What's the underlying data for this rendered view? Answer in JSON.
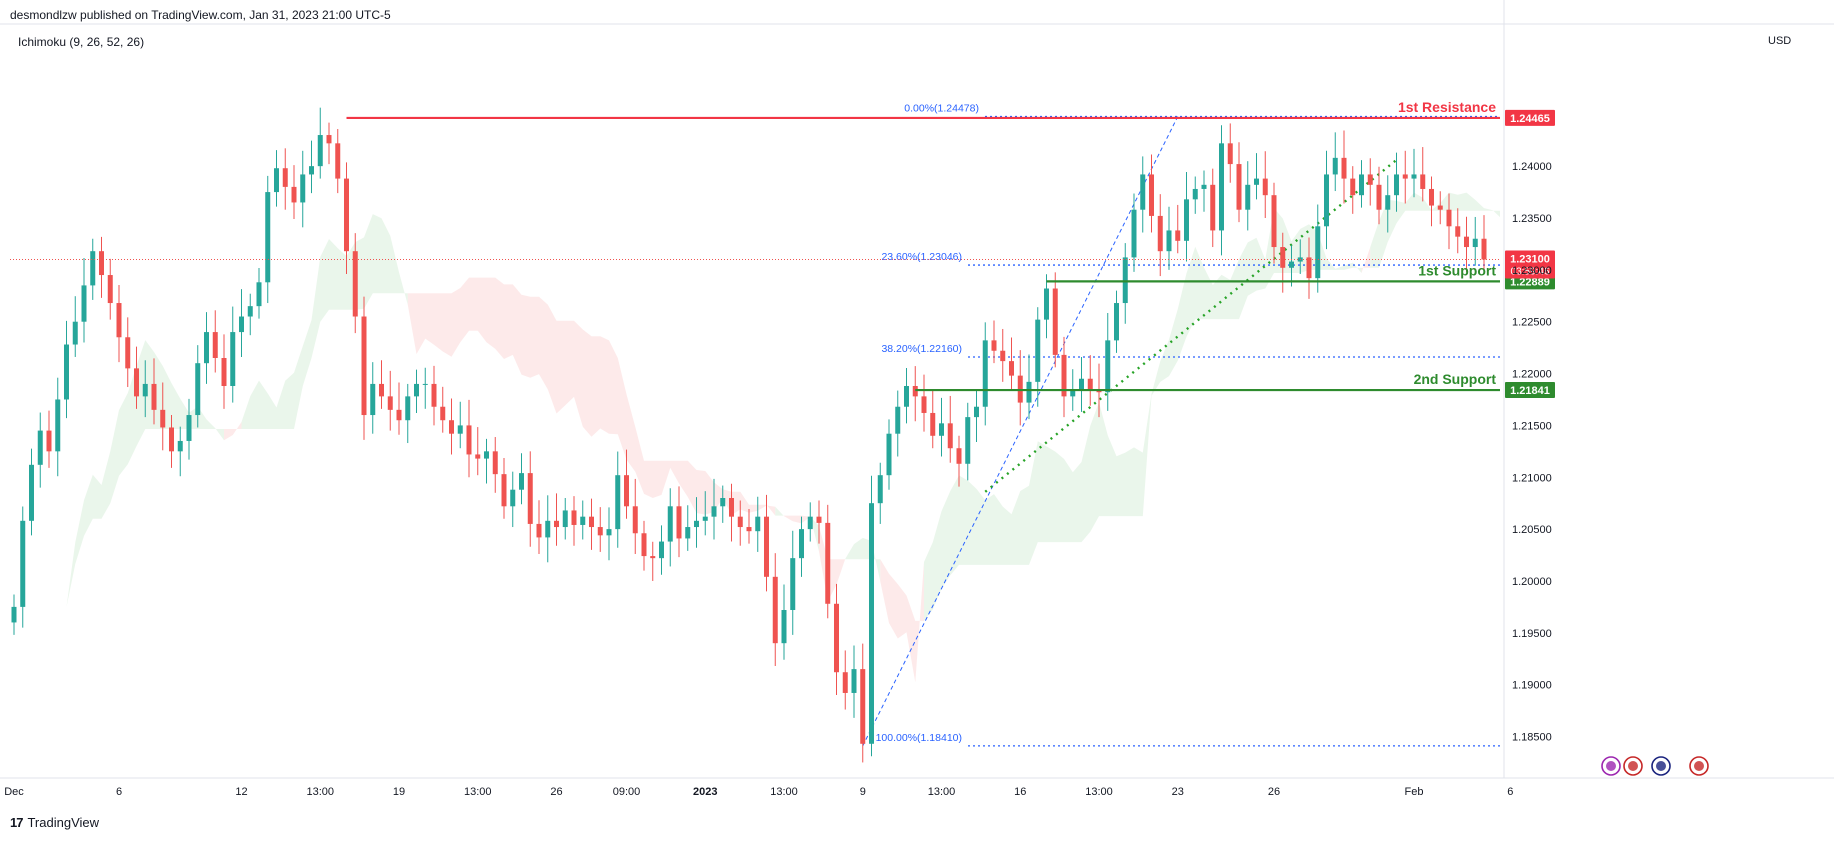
{
  "header": {
    "published": "desmondlzw published on TradingView.com, Jan 31, 2023 21:00 UTC-5",
    "indicator": "Ichimoku (9, 26, 52, 26)",
    "currency": "USD"
  },
  "footer": {
    "brand": "TradingView"
  },
  "colors": {
    "up": "#26a69a",
    "down": "#ef5350",
    "resistance": "#f23645",
    "support": "#2e8b2e",
    "fib": "#2962ff",
    "cloud_bull": "#e8f5e9",
    "cloud_bear": "#fde8e8"
  },
  "chart_data": {
    "type": "candlestick",
    "symbol_quote": "USD",
    "ylim": [
      1.181,
      1.2512
    ],
    "yticks": [
      "1.24000",
      "1.23500",
      "1.23000",
      "1.22500",
      "1.22000",
      "1.21500",
      "1.21000",
      "1.20500",
      "1.20000",
      "1.19500",
      "1.19000",
      "1.18500"
    ],
    "xticks": [
      {
        "label": "Dec",
        "x": 0
      },
      {
        "label": "6",
        "x": 12
      },
      {
        "label": "12",
        "x": 26
      },
      {
        "label": "13:00",
        "x": 35
      },
      {
        "label": "19",
        "x": 44
      },
      {
        "label": "13:00",
        "x": 53
      },
      {
        "label": "26",
        "x": 62
      },
      {
        "label": "09:00",
        "x": 70
      },
      {
        "label": "2023",
        "x": 79
      },
      {
        "label": "13:00",
        "x": 88
      },
      {
        "label": "9",
        "x": 97
      },
      {
        "label": "13:00",
        "x": 106
      },
      {
        "label": "16",
        "x": 115
      },
      {
        "label": "13:00",
        "x": 124
      },
      {
        "label": "23",
        "x": 133
      },
      {
        "label": "26",
        "x": 144
      },
      {
        "label": "Feb",
        "x": 160
      },
      {
        "label": "6",
        "x": 171
      }
    ],
    "closes": [
      1.1975,
      1.2058,
      1.2112,
      1.2145,
      1.2125,
      1.2175,
      1.2228,
      1.225,
      1.2285,
      1.2318,
      1.2295,
      1.2268,
      1.2235,
      1.2205,
      1.2178,
      1.219,
      1.2165,
      1.2148,
      1.2125,
      1.2135,
      1.216,
      1.221,
      1.224,
      1.2215,
      1.2188,
      1.224,
      1.2255,
      1.2265,
      1.2288,
      1.2375,
      1.2398,
      1.238,
      1.2365,
      1.2392,
      1.24,
      1.243,
      1.2422,
      1.2388,
      1.2318,
      1.2255,
      1.216,
      1.219,
      1.2178,
      1.2165,
      1.2155,
      1.2178,
      1.219,
      1.219,
      1.2168,
      1.2155,
      1.2142,
      1.215,
      1.2122,
      1.2118,
      1.2125,
      1.2103,
      1.2072,
      1.2088,
      1.2104,
      1.2055,
      1.2042,
      1.2058,
      1.2052,
      1.2068,
      1.2054,
      1.2062,
      1.2052,
      1.2044,
      1.205,
      1.2102,
      1.2072,
      1.2046,
      1.2024,
      1.2022,
      1.2038,
      1.2072,
      1.2041,
      1.2052,
      1.2058,
      1.2062,
      1.2072,
      1.208,
      1.2062,
      1.2052,
      1.2048,
      1.2062,
      1.2004,
      1.194,
      1.1972,
      1.2022,
      1.205,
      1.2062,
      1.2056,
      1.1978,
      1.1912,
      1.1892,
      1.1915,
      1.1843,
      1.2075,
      1.2102,
      1.2142,
      1.2168,
      1.2188,
      1.2178,
      1.2162,
      1.214,
      1.2152,
      1.2128,
      1.2113,
      1.2158,
      1.2168,
      1.2232,
      1.2222,
      1.2212,
      1.2198,
      1.2172,
      1.2192,
      1.2252,
      1.2282,
      1.2218,
      1.2178,
      1.2185,
      1.2195,
      1.2185,
      1.2182,
      1.2232,
      1.2268,
      1.2312,
      1.2358,
      1.2392,
      1.2352,
      1.2318,
      1.2338,
      1.2328,
      1.2368,
      1.2378,
      1.2382,
      1.2338,
      1.2422,
      1.2402,
      1.2358,
      1.2382,
      1.2388,
      1.2372,
      1.2322,
      1.2302,
      1.2308,
      1.2312,
      1.2292,
      1.2342,
      1.2392,
      1.2408,
      1.2388,
      1.2372,
      1.2392,
      1.2382,
      1.2358,
      1.2372,
      1.2392,
      1.2388,
      1.2392,
      1.2378,
      1.2362,
      1.2358,
      1.2342,
      1.2332,
      1.2322,
      1.233,
      1.231
    ],
    "levels": [
      {
        "label": "1st Resistance",
        "value": 1.24465,
        "kind": "resistance"
      },
      {
        "label": "1st Support",
        "value": 1.22889,
        "kind": "support"
      },
      {
        "label": "2nd Support",
        "value": 1.21841,
        "kind": "support"
      }
    ],
    "current_price": {
      "value": "1.23100",
      "countdown": "03:59:46"
    },
    "fibonacci": [
      {
        "label": "0.00%(1.24478)",
        "value": 1.24478
      },
      {
        "label": "23.60%(1.23046)",
        "value": 1.23046
      },
      {
        "label": "38.20%(1.22160)",
        "value": 1.2216
      },
      {
        "label": "100.00%(1.18410)",
        "value": 1.1841
      }
    ]
  }
}
